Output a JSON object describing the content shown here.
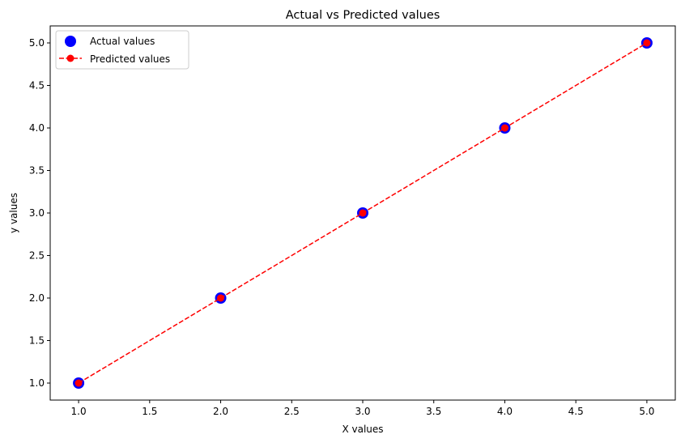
{
  "chart_data": {
    "type": "scatter",
    "title": "Actual vs Predicted values",
    "xlabel": "X values",
    "ylabel": "y values",
    "xlim": [
      0.8,
      5.2
    ],
    "ylim": [
      0.8,
      5.2
    ],
    "xticks": [
      "1.0",
      "1.5",
      "2.0",
      "2.5",
      "3.0",
      "3.5",
      "4.0",
      "4.5",
      "5.0"
    ],
    "yticks": [
      "1.0",
      "1.5",
      "2.0",
      "2.5",
      "3.0",
      "3.5",
      "4.0",
      "4.5",
      "5.0"
    ],
    "grid": false,
    "legend_position": "top-left",
    "series": [
      {
        "name": "Actual values",
        "kind": "scatter",
        "color": "#0000ff",
        "x": [
          1,
          2,
          3,
          4,
          5
        ],
        "y": [
          1,
          2,
          3,
          4,
          5
        ]
      },
      {
        "name": "Predicted values",
        "kind": "line",
        "line_style": "dashed",
        "marker": "circle",
        "color": "#ff0000",
        "x": [
          1,
          2,
          3,
          4,
          5
        ],
        "y": [
          1,
          2,
          3,
          4,
          5
        ]
      }
    ]
  }
}
